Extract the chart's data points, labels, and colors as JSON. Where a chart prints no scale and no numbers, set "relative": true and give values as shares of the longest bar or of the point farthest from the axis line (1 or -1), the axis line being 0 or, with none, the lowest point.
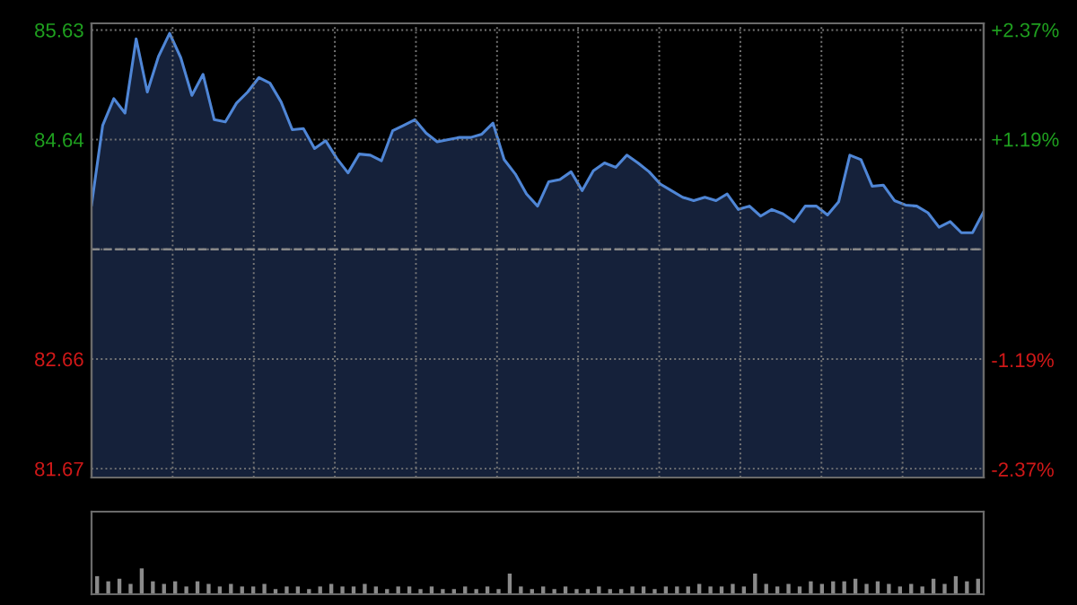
{
  "chart_data": [
    {
      "type": "area",
      "color": "#4f86d6",
      "categories": [
        null,
        null,
        null,
        null,
        null,
        null,
        null,
        null,
        null,
        null,
        null,
        null,
        null,
        null,
        null,
        null,
        null,
        null,
        null,
        null,
        null,
        null,
        null,
        null,
        null,
        null,
        null,
        null,
        null,
        null,
        null,
        null,
        null,
        null,
        null,
        null,
        null,
        null,
        null,
        null,
        null,
        null,
        null,
        null,
        null,
        null,
        null,
        null,
        null,
        null,
        null,
        null,
        null,
        null,
        null,
        null,
        null,
        null,
        null,
        null,
        null,
        null,
        null,
        null,
        null,
        null,
        null,
        null,
        null,
        null,
        null,
        null,
        null,
        null,
        null,
        null,
        null,
        null,
        null,
        null,
        null
      ],
      "values": [
        84.05,
        84.77,
        85.01,
        84.88,
        85.55,
        85.07,
        85.39,
        85.6,
        85.38,
        85.04,
        85.23,
        84.82,
        84.8,
        84.97,
        85.07,
        85.2,
        85.15,
        84.98,
        84.73,
        84.74,
        84.56,
        84.63,
        84.47,
        84.34,
        84.51,
        84.5,
        84.45,
        84.72,
        84.77,
        84.82,
        84.7,
        84.62,
        84.64,
        84.66,
        84.66,
        84.69,
        84.79,
        84.46,
        84.33,
        84.15,
        84.04,
        84.26,
        84.28,
        84.35,
        84.18,
        84.36,
        84.43,
        84.39,
        84.5,
        84.43,
        84.35,
        84.24,
        84.18,
        84.12,
        84.09,
        84.12,
        84.09,
        84.15,
        84.01,
        84.04,
        83.95,
        84.01,
        83.97,
        83.9,
        84.04,
        84.04,
        83.96,
        84.08,
        84.5,
        84.46,
        84.22,
        84.23,
        84.09,
        84.05,
        84.04,
        83.98,
        83.85,
        83.9,
        83.8,
        83.8,
        83.99
      ],
      "ylim": [
        81.59,
        85.69
      ],
      "yticks": [
        85.63,
        84.64,
        {
          "value": 83.65,
          "label": null
        },
        82.66,
        81.67
      ],
      "y2lim": [
        -2.46,
        2.44
      ],
      "y2ticks": [
        {
          "value": 2.37,
          "label": "+2.37%"
        },
        {
          "value": 1.19,
          "label": "+1.19%"
        },
        {
          "value": 0,
          "label": null
        },
        {
          "value": -1.19,
          "label": "-1.19%"
        },
        {
          "value": -2.37,
          "label": "-2.37%"
        }
      ],
      "ref_lines": [
        {
          "axis": "y",
          "value": 83.65,
          "label": null,
          "line_style": "dashed"
        }
      ],
      "grid": true,
      "line_style": "solid",
      "marker": "none"
    },
    {
      "type": "bar",
      "relative": true,
      "color": "#8a8a8a",
      "categories": [
        null,
        null,
        null,
        null,
        null,
        null,
        null,
        null,
        null,
        null,
        null,
        null,
        null,
        null,
        null,
        null,
        null,
        null,
        null,
        null,
        null,
        null,
        null,
        null,
        null,
        null,
        null,
        null,
        null,
        null,
        null,
        null,
        null,
        null,
        null,
        null,
        null,
        null,
        null,
        null,
        null,
        null,
        null,
        null,
        null,
        null,
        null,
        null,
        null,
        null,
        null,
        null,
        null,
        null,
        null,
        null,
        null,
        null,
        null,
        null,
        null,
        null,
        null,
        null,
        null,
        null,
        null,
        null,
        null,
        null,
        null,
        null,
        null,
        null,
        null,
        null,
        null,
        null,
        null,
        null
      ],
      "values": [
        0.7,
        0.5,
        0.6,
        0.4,
        1.0,
        0.5,
        0.4,
        0.5,
        0.3,
        0.5,
        0.4,
        0.3,
        0.4,
        0.3,
        0.3,
        0.4,
        0.2,
        0.3,
        0.3,
        0.2,
        0.3,
        0.4,
        0.3,
        0.3,
        0.4,
        0.3,
        0.2,
        0.3,
        0.3,
        0.2,
        0.3,
        0.2,
        0.2,
        0.3,
        0.2,
        0.3,
        0.2,
        0.8,
        0.3,
        0.2,
        0.3,
        0.2,
        0.3,
        0.2,
        0.2,
        0.3,
        0.2,
        0.2,
        0.3,
        0.3,
        0.2,
        0.3,
        0.3,
        0.3,
        0.4,
        0.3,
        0.3,
        0.4,
        0.3,
        0.8,
        0.4,
        0.3,
        0.4,
        0.3,
        0.5,
        0.4,
        0.5,
        0.5,
        0.6,
        0.4,
        0.5,
        0.4,
        0.3,
        0.4,
        0.3,
        0.6,
        0.4,
        0.7,
        0.5,
        0.6
      ]
    }
  ]
}
